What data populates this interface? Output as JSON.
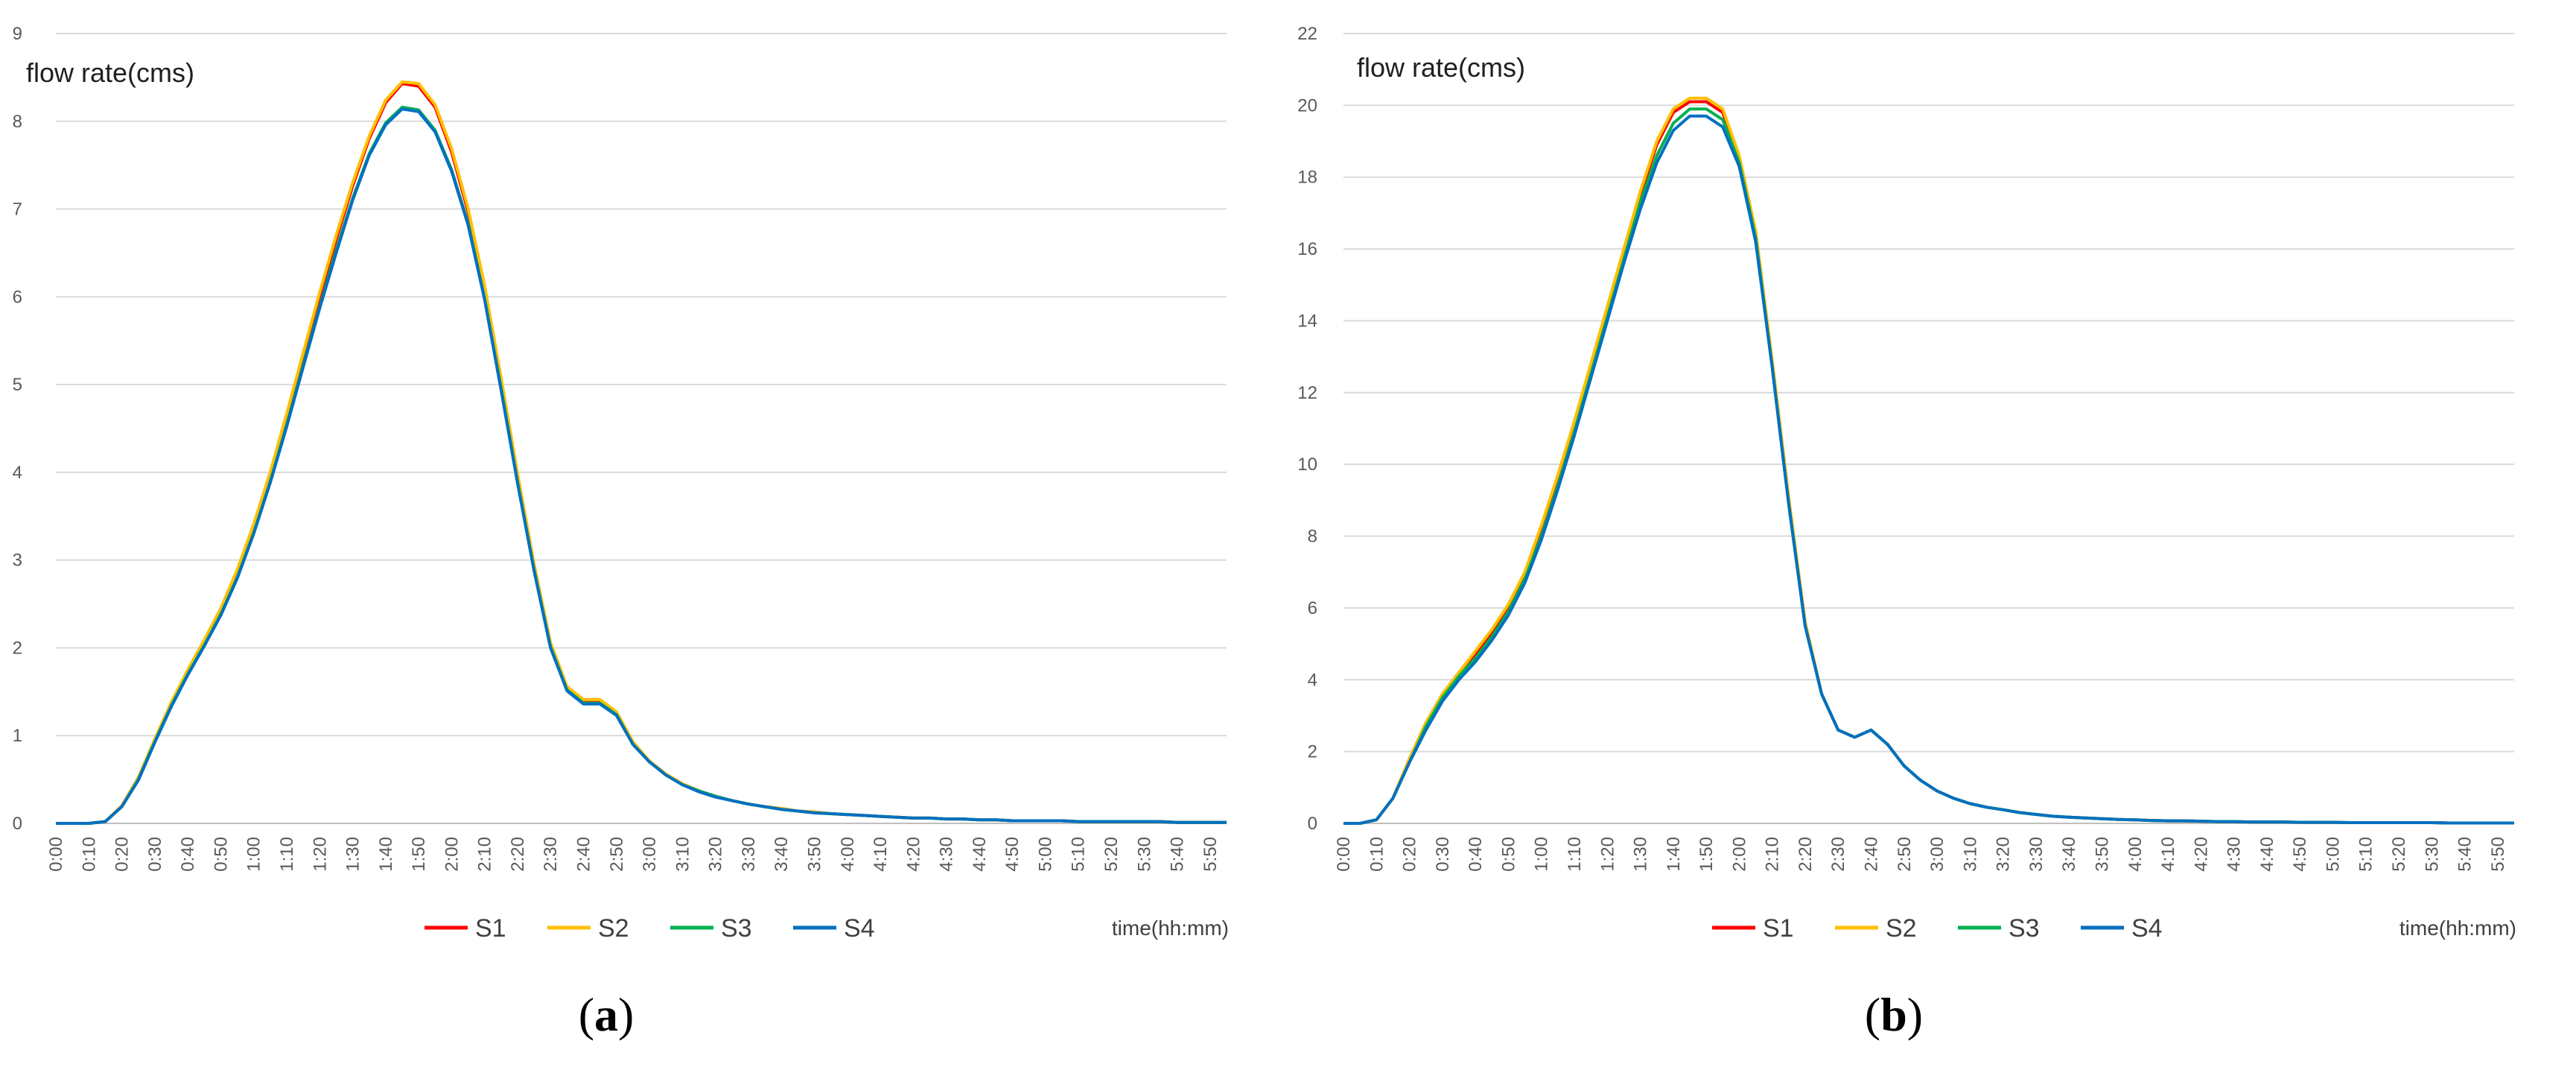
{
  "chart_data": [
    {
      "panel": "a",
      "caption": "a",
      "type": "line",
      "ylabel": "flow rate(cms)",
      "xlabel": "time(hh:mm)",
      "ylim": [
        0,
        9
      ],
      "yticks": [
        0,
        1,
        2,
        3,
        4,
        5,
        6,
        7,
        8,
        9
      ],
      "grid": true,
      "legend_position": "bottom",
      "x_labels": [
        "0:00",
        "0:10",
        "0:20",
        "0:30",
        "0:40",
        "0:50",
        "1:00",
        "1:10",
        "1:20",
        "1:30",
        "1:40",
        "1:50",
        "2:00",
        "2:10",
        "2:20",
        "2:30",
        "2:40",
        "2:50",
        "3:00",
        "3:10",
        "3:20",
        "3:30",
        "3:40",
        "3:50",
        "4:00",
        "4:10",
        "4:20",
        "4:30",
        "4:40",
        "4:50",
        "5:00",
        "5:10",
        "5:20",
        "5:30",
        "5:40",
        "5:50"
      ],
      "step_minutes": 5,
      "series": [
        {
          "name": "S1",
          "color": "#ff0000",
          "values": [
            0,
            0,
            0,
            0.02,
            0.2,
            0.52,
            0.95,
            1.37,
            1.73,
            2.07,
            2.43,
            2.86,
            3.38,
            3.97,
            4.63,
            5.32,
            6.0,
            6.65,
            7.26,
            7.8,
            8.21,
            8.43,
            8.4,
            8.16,
            7.65,
            6.97,
            6.08,
            5.03,
            3.95,
            2.93,
            2.04,
            1.55,
            1.4,
            1.4,
            1.26,
            0.92,
            0.71,
            0.56,
            0.45,
            0.37,
            0.31,
            0.26,
            0.22,
            0.19,
            0.17,
            0.14,
            0.13,
            0.11,
            0.1,
            0.09,
            0.08,
            0.07,
            0.06,
            0.06,
            0.05,
            0.05,
            0.04,
            0.04,
            0.03,
            0.03,
            0.03,
            0.03,
            0.02,
            0.02,
            0.02,
            0.02,
            0.02,
            0.02,
            0.01,
            0.01,
            0.01,
            0.01
          ]
        },
        {
          "name": "S2",
          "color": "#ffc000",
          "values": [
            0,
            0,
            0,
            0.02,
            0.2,
            0.52,
            0.96,
            1.38,
            1.75,
            2.09,
            2.45,
            2.89,
            3.41,
            4.0,
            4.67,
            5.36,
            6.05,
            6.7,
            7.3,
            7.83,
            8.24,
            8.45,
            8.43,
            8.19,
            7.69,
            7.01,
            6.13,
            5.08,
            3.99,
            2.96,
            2.06,
            1.56,
            1.41,
            1.41,
            1.27,
            0.93,
            0.71,
            0.56,
            0.45,
            0.37,
            0.31,
            0.26,
            0.22,
            0.19,
            0.17,
            0.14,
            0.13,
            0.11,
            0.1,
            0.09,
            0.08,
            0.07,
            0.06,
            0.06,
            0.05,
            0.05,
            0.04,
            0.04,
            0.03,
            0.03,
            0.03,
            0.03,
            0.02,
            0.02,
            0.02,
            0.02,
            0.02,
            0.02,
            0.01,
            0.01,
            0.01,
            0.01
          ]
        },
        {
          "name": "S3",
          "color": "#00b050",
          "values": [
            0,
            0,
            0,
            0.02,
            0.19,
            0.5,
            0.93,
            1.34,
            1.7,
            2.03,
            2.38,
            2.8,
            3.31,
            3.89,
            4.54,
            5.22,
            5.89,
            6.53,
            7.12,
            7.63,
            7.98,
            8.16,
            8.13,
            7.9,
            7.45,
            6.84,
            5.98,
            4.96,
            3.89,
            2.89,
            2.01,
            1.52,
            1.37,
            1.37,
            1.24,
            0.9,
            0.7,
            0.55,
            0.44,
            0.37,
            0.31,
            0.26,
            0.22,
            0.19,
            0.16,
            0.14,
            0.12,
            0.11,
            0.1,
            0.09,
            0.08,
            0.07,
            0.06,
            0.06,
            0.05,
            0.05,
            0.04,
            0.04,
            0.03,
            0.03,
            0.03,
            0.03,
            0.02,
            0.02,
            0.02,
            0.02,
            0.02,
            0.02,
            0.01,
            0.01,
            0.01,
            0.01
          ]
        },
        {
          "name": "S4",
          "color": "#0070c0",
          "values": [
            0,
            0,
            0,
            0.02,
            0.19,
            0.49,
            0.92,
            1.33,
            1.69,
            2.02,
            2.37,
            2.79,
            3.3,
            3.88,
            4.52,
            5.2,
            5.87,
            6.5,
            7.1,
            7.61,
            7.96,
            8.14,
            8.11,
            7.88,
            7.43,
            6.82,
            5.97,
            4.94,
            3.88,
            2.88,
            2.0,
            1.51,
            1.36,
            1.36,
            1.23,
            0.9,
            0.7,
            0.55,
            0.44,
            0.36,
            0.3,
            0.26,
            0.22,
            0.19,
            0.16,
            0.14,
            0.12,
            0.11,
            0.1,
            0.09,
            0.08,
            0.07,
            0.06,
            0.06,
            0.05,
            0.05,
            0.04,
            0.04,
            0.03,
            0.03,
            0.03,
            0.03,
            0.02,
            0.02,
            0.02,
            0.02,
            0.02,
            0.02,
            0.01,
            0.01,
            0.01,
            0.01
          ]
        }
      ]
    },
    {
      "panel": "b",
      "caption": "b",
      "type": "line",
      "ylabel": "flow rate(cms)",
      "xlabel": "time(hh:mm)",
      "ylim": [
        0,
        22
      ],
      "yticks": [
        0,
        2,
        4,
        6,
        8,
        10,
        12,
        14,
        16,
        18,
        20,
        22
      ],
      "grid": true,
      "legend_position": "bottom",
      "x_labels": [
        "0:00",
        "0:10",
        "0:20",
        "0:30",
        "0:40",
        "0:50",
        "1:00",
        "1:10",
        "1:20",
        "1:30",
        "1:40",
        "1:50",
        "2:00",
        "2:10",
        "2:20",
        "2:30",
        "2:40",
        "2:50",
        "3:00",
        "3:10",
        "3:20",
        "3:30",
        "3:40",
        "3:50",
        "4:00",
        "4:10",
        "4:20",
        "4:30",
        "4:40",
        "4:50",
        "5:00",
        "5:10",
        "5:20",
        "5:30",
        "5:40",
        "5:50"
      ],
      "step_minutes": 5,
      "series": [
        {
          "name": "S1",
          "color": "#ff0000",
          "values": [
            0,
            0,
            0.1,
            0.7,
            1.8,
            2.8,
            3.6,
            4.2,
            4.7,
            5.3,
            6.0,
            6.9,
            8.2,
            9.6,
            11.1,
            12.7,
            14.3,
            15.9,
            17.5,
            18.9,
            19.8,
            20.1,
            20.1,
            19.8,
            18.5,
            16.4,
            12.8,
            9.0,
            5.6,
            3.6,
            2.6,
            2.4,
            2.6,
            2.2,
            1.6,
            1.2,
            0.9,
            0.7,
            0.55,
            0.45,
            0.38,
            0.3,
            0.25,
            0.2,
            0.17,
            0.15,
            0.13,
            0.11,
            0.1,
            0.08,
            0.07,
            0.07,
            0.06,
            0.05,
            0.05,
            0.04,
            0.04,
            0.04,
            0.03,
            0.03,
            0.03,
            0.02,
            0.02,
            0.02,
            0.02,
            0.02,
            0.02,
            0.01,
            0.01,
            0.01,
            0.01,
            0.01
          ]
        },
        {
          "name": "S2",
          "color": "#ffc000",
          "values": [
            0,
            0,
            0.1,
            0.7,
            1.8,
            2.8,
            3.6,
            4.2,
            4.8,
            5.4,
            6.1,
            7.0,
            8.3,
            9.7,
            11.2,
            12.8,
            14.4,
            16.0,
            17.6,
            19.0,
            19.9,
            20.2,
            20.2,
            19.9,
            18.6,
            16.5,
            12.9,
            9.1,
            5.6,
            3.6,
            2.6,
            2.4,
            2.6,
            2.2,
            1.6,
            1.2,
            0.9,
            0.7,
            0.55,
            0.45,
            0.38,
            0.3,
            0.25,
            0.2,
            0.17,
            0.15,
            0.13,
            0.11,
            0.1,
            0.08,
            0.07,
            0.07,
            0.06,
            0.05,
            0.05,
            0.04,
            0.04,
            0.04,
            0.03,
            0.03,
            0.03,
            0.02,
            0.02,
            0.02,
            0.02,
            0.02,
            0.02,
            0.01,
            0.01,
            0.01,
            0.01,
            0.01
          ]
        },
        {
          "name": "S3",
          "color": "#00b050",
          "values": [
            0,
            0,
            0.1,
            0.7,
            1.7,
            2.7,
            3.5,
            4.1,
            4.6,
            5.2,
            5.9,
            6.8,
            8.0,
            9.4,
            10.9,
            12.5,
            14.1,
            15.7,
            17.3,
            18.6,
            19.5,
            19.9,
            19.9,
            19.6,
            18.4,
            16.3,
            12.7,
            8.9,
            5.5,
            3.6,
            2.6,
            2.4,
            2.6,
            2.2,
            1.6,
            1.2,
            0.9,
            0.7,
            0.55,
            0.45,
            0.38,
            0.3,
            0.25,
            0.2,
            0.17,
            0.15,
            0.13,
            0.11,
            0.1,
            0.08,
            0.07,
            0.07,
            0.06,
            0.05,
            0.05,
            0.04,
            0.04,
            0.04,
            0.03,
            0.03,
            0.03,
            0.02,
            0.02,
            0.02,
            0.02,
            0.02,
            0.02,
            0.01,
            0.01,
            0.01,
            0.01,
            0.01
          ]
        },
        {
          "name": "S4",
          "color": "#0070c0",
          "values": [
            0,
            0,
            0.1,
            0.7,
            1.7,
            2.6,
            3.4,
            4.0,
            4.5,
            5.1,
            5.8,
            6.7,
            7.9,
            9.3,
            10.8,
            12.4,
            14.0,
            15.6,
            17.1,
            18.4,
            19.3,
            19.7,
            19.7,
            19.4,
            18.3,
            16.2,
            12.7,
            8.9,
            5.5,
            3.6,
            2.6,
            2.4,
            2.6,
            2.2,
            1.6,
            1.2,
            0.9,
            0.7,
            0.55,
            0.45,
            0.38,
            0.3,
            0.25,
            0.2,
            0.17,
            0.15,
            0.13,
            0.11,
            0.1,
            0.08,
            0.07,
            0.07,
            0.06,
            0.05,
            0.05,
            0.04,
            0.04,
            0.04,
            0.03,
            0.03,
            0.03,
            0.02,
            0.02,
            0.02,
            0.02,
            0.02,
            0.02,
            0.01,
            0.01,
            0.01,
            0.01,
            0.01
          ]
        }
      ]
    }
  ]
}
